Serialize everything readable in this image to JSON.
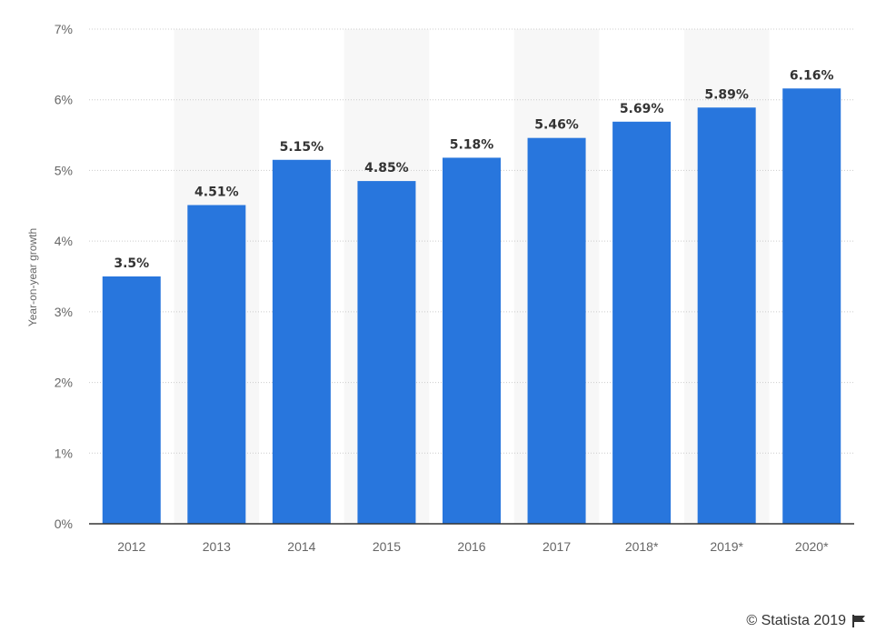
{
  "chart_data": {
    "type": "bar",
    "categories": [
      "2012",
      "2013",
      "2014",
      "2015",
      "2016",
      "2017",
      "2018*",
      "2019*",
      "2020*"
    ],
    "values": [
      3.5,
      4.51,
      5.15,
      4.85,
      5.18,
      5.46,
      5.69,
      5.89,
      6.16
    ],
    "data_labels": [
      "3.5%",
      "4.51%",
      "5.15%",
      "4.85%",
      "5.18%",
      "5.46%",
      "5.69%",
      "5.89%",
      "6.16%"
    ],
    "ylabel": "Year-on-year growth",
    "ylim": [
      0,
      7
    ],
    "y_ticks": [
      0,
      1,
      2,
      3,
      4,
      5,
      6,
      7
    ],
    "y_tick_labels": [
      "0%",
      "1%",
      "2%",
      "3%",
      "4%",
      "5%",
      "6%",
      "7%"
    ],
    "grid": true,
    "legend": "none",
    "colors": {
      "bar": "#2876DD",
      "alt_band": "#F7F7F7",
      "grid": "#CCCCCC",
      "axis": "#333333"
    }
  },
  "footer": {
    "credit": "© Statista 2019",
    "flag_icon": "flag-icon"
  }
}
